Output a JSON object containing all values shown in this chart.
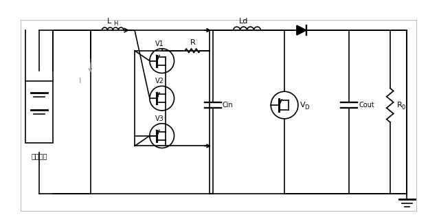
{
  "fig_width": 6.23,
  "fig_height": 3.13,
  "dpi": 100,
  "bg_color": "#ffffff",
  "line_color": "#000000",
  "line_width": 1.2,
  "labels": {
    "battery": "蔽电池组",
    "LH": "L",
    "LH_sub": "H",
    "Ld": "Ld",
    "R": "R",
    "V1": "V1",
    "V2": "V2",
    "V3": "V3",
    "Cin": "Cin",
    "VD": "V",
    "VD_sub": "D",
    "Cout": "Cout",
    "R0": "R",
    "R0_sub": "0",
    "I": "I"
  }
}
